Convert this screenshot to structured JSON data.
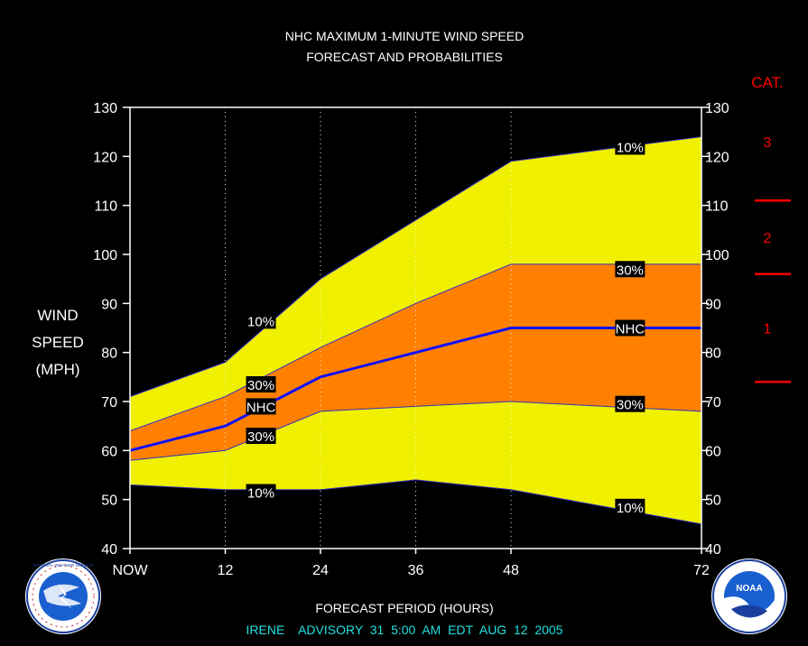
{
  "chart_data": {
    "type": "area",
    "title": "NHC MAXIMUM 1-MINUTE WIND SPEED",
    "subtitle": "FORECAST AND PROBABILITIES",
    "xlabel": "FORECAST PERIOD (HOURS)",
    "ylabel_lines": [
      "WIND",
      "SPEED",
      "(MPH)"
    ],
    "xlim": [
      0,
      72
    ],
    "ylim": [
      40,
      130
    ],
    "x_ticks": [
      0,
      12,
      24,
      36,
      48,
      72
    ],
    "x_tick_labels": [
      "NOW",
      "12",
      "24",
      "36",
      "48",
      "72"
    ],
    "y_ticks": [
      40,
      50,
      60,
      70,
      80,
      90,
      100,
      110,
      120,
      130
    ],
    "x": [
      0,
      12,
      24,
      36,
      48,
      72
    ],
    "series": [
      {
        "name": "10%",
        "role": "upper-10",
        "values": [
          71,
          78,
          95,
          107,
          119,
          124
        ]
      },
      {
        "name": "30%",
        "role": "upper-30",
        "values": [
          64,
          71,
          81,
          90,
          98,
          98
        ]
      },
      {
        "name": "NHC",
        "role": "nhc",
        "values": [
          60,
          65,
          75,
          80,
          85,
          85
        ]
      },
      {
        "name": "30%",
        "role": "lower-30",
        "values": [
          58,
          60,
          68,
          69,
          70,
          68
        ]
      },
      {
        "name": "10%",
        "role": "lower-10",
        "values": [
          53,
          52,
          52,
          54,
          52,
          45
        ]
      }
    ],
    "band_labels": [
      {
        "text": "10%",
        "x": 16.5,
        "y": 86.5
      },
      {
        "text": "30%",
        "x": 16.5,
        "y": 73.5
      },
      {
        "text": "NHC",
        "x": 16.5,
        "y": 69
      },
      {
        "text": "30%",
        "x": 16.5,
        "y": 63
      },
      {
        "text": "10%",
        "x": 16.5,
        "y": 51.5
      },
      {
        "text": "10%",
        "x": 63,
        "y": 122
      },
      {
        "text": "30%",
        "x": 63,
        "y": 97
      },
      {
        "text": "NHC",
        "x": 63,
        "y": 85
      },
      {
        "text": "30%",
        "x": 63,
        "y": 69.5
      },
      {
        "text": "10%",
        "x": 63,
        "y": 48.5
      }
    ],
    "category": {
      "label": "CAT.",
      "boundaries": [
        74,
        96,
        111
      ],
      "labels": [
        {
          "text": "1",
          "y": 85
        },
        {
          "text": "2",
          "y": 103.5
        },
        {
          "text": "3",
          "y": 123
        }
      ]
    },
    "colors": {
      "outer_band": "#f0f000",
      "inner_band": "#ff8000",
      "nhc_line": "#1010ff",
      "category": "#ff0000",
      "footer": "#20e0e0"
    },
    "grid_vertical_dotted": true
  },
  "footer": "IRENE    ADVISORY  31  5:00  AM  EDT  AUG  12  2005",
  "logos": {
    "left": {
      "icon": "nws-logo-icon",
      "text": "NATIONAL WEATHER SERVICE"
    },
    "right": {
      "icon": "noaa-logo-icon",
      "text": "NOAA"
    }
  }
}
